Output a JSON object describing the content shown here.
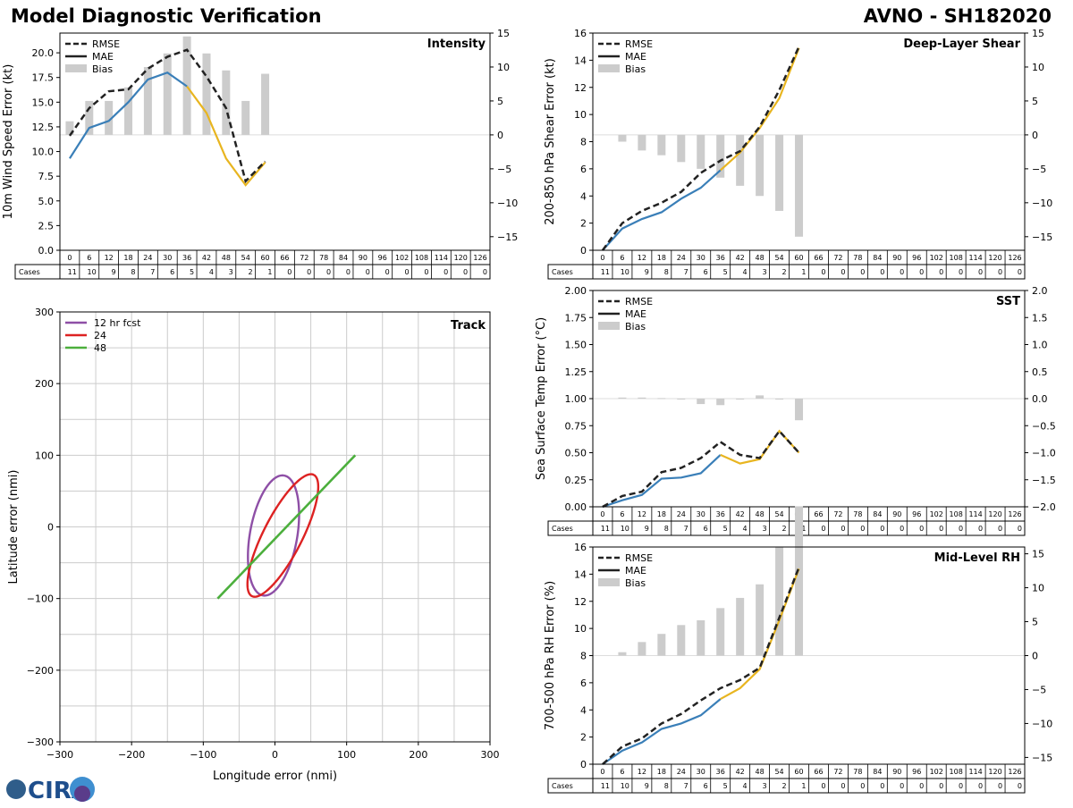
{
  "header": {
    "left_title": "Model Diagnostic Verification",
    "right_title": "AVNO - SH182020",
    "logo_text": "CIRA"
  },
  "legend": {
    "rmse": "RMSE",
    "mae": "MAE",
    "bias": "Bias"
  },
  "table": {
    "cases_label": "Cases",
    "hours": [
      0,
      6,
      12,
      18,
      24,
      30,
      36,
      42,
      48,
      54,
      60,
      66,
      72,
      78,
      84,
      90,
      96,
      102,
      108,
      114,
      120,
      126
    ],
    "cases": [
      11,
      10,
      9,
      8,
      7,
      6,
      5,
      4,
      3,
      2,
      1,
      0,
      0,
      0,
      0,
      0,
      0,
      0,
      0,
      0,
      0,
      0
    ]
  },
  "colors": {
    "rmse": "#222222",
    "mae_early": "#3a7fb8",
    "mae_late": "#e8b520",
    "bias": "#cccccc",
    "track_12": "#8e4fa6",
    "track_24": "#dd2222",
    "track_48": "#4caf3d"
  },
  "chart_data": [
    {
      "type": "line",
      "title": "Intensity",
      "ylabel": "10m Wind Speed Error (kt)",
      "ylim": [
        0,
        22
      ],
      "yticks": [
        0,
        2.5,
        5,
        7.5,
        10,
        12.5,
        15,
        17.5,
        20
      ],
      "ytick_labels": [
        "0.0",
        "2.5",
        "5.0",
        "7.5",
        "10.0",
        "12.5",
        "15.0",
        "17.5",
        "20.0"
      ],
      "y2lim": [
        -17,
        15
      ],
      "y2ticks": [
        -15,
        -10,
        -5,
        0,
        5,
        10,
        15
      ],
      "y2tick_labels": [
        "−15",
        "−10",
        "−5",
        "0",
        "5",
        "10",
        "15"
      ],
      "x": [
        0,
        6,
        12,
        18,
        24,
        30,
        36,
        42,
        48,
        54,
        60
      ],
      "rmse": [
        11.6,
        14.4,
        16.1,
        16.3,
        18.4,
        19.6,
        20.3,
        17.6,
        14.4,
        7.0,
        9.0
      ],
      "mae": [
        9.3,
        12.4,
        13.1,
        15.0,
        17.3,
        18.0,
        16.6,
        13.9,
        9.3,
        6.6,
        8.9
      ],
      "bias": [
        2,
        5,
        5,
        7,
        10,
        12,
        14.5,
        12,
        9.5,
        5,
        9
      ]
    },
    {
      "type": "line",
      "title": "Deep-Layer Shear",
      "ylabel": "200-850 hPa Shear Error (kt)",
      "ylim": [
        0,
        16
      ],
      "yticks": [
        0,
        2,
        4,
        6,
        8,
        10,
        12,
        14,
        16
      ],
      "ytick_labels": [
        "0",
        "2",
        "4",
        "6",
        "8",
        "10",
        "12",
        "14",
        "16"
      ],
      "y2lim": [
        -17,
        15
      ],
      "y2ticks": [
        -15,
        -10,
        -5,
        0,
        5,
        10,
        15
      ],
      "y2tick_labels": [
        "−15",
        "−10",
        "−5",
        "0",
        "5",
        "10",
        "15"
      ],
      "x": [
        0,
        6,
        12,
        18,
        24,
        30,
        36,
        42,
        48,
        54,
        60
      ],
      "rmse": [
        0,
        2.0,
        2.9,
        3.5,
        4.3,
        5.7,
        6.6,
        7.3,
        9.1,
        11.8,
        15.0
      ],
      "mae": [
        0,
        1.6,
        2.3,
        2.8,
        3.8,
        4.6,
        5.9,
        7.2,
        9.0,
        11.2,
        14.9
      ],
      "bias": [
        0,
        -1,
        -2.3,
        -3,
        -4,
        -5,
        -6.3,
        -7.5,
        -9,
        -11.2,
        -15
      ]
    },
    {
      "type": "line",
      "title": "SST",
      "ylabel": "Sea Surface Temp Error (°C)",
      "ylim": [
        0,
        2
      ],
      "yticks": [
        0,
        0.25,
        0.5,
        0.75,
        1,
        1.25,
        1.5,
        1.75,
        2
      ],
      "ytick_labels": [
        "0.00",
        "0.25",
        "0.50",
        "0.75",
        "1.00",
        "1.25",
        "1.50",
        "1.75",
        "2.00"
      ],
      "y2lim": [
        -2,
        2
      ],
      "y2ticks": [
        -2,
        -1.5,
        -1,
        -0.5,
        0,
        0.5,
        1,
        1.5,
        2
      ],
      "y2tick_labels": [
        "−2.0",
        "−1.5",
        "−1.0",
        "−0.5",
        "0.0",
        "0.5",
        "1.0",
        "1.5",
        "2.0"
      ],
      "x": [
        0,
        6,
        12,
        18,
        24,
        30,
        36,
        42,
        48,
        54,
        60
      ],
      "rmse": [
        0,
        0.1,
        0.14,
        0.32,
        0.36,
        0.45,
        0.6,
        0.48,
        0.45,
        0.7,
        0.5
      ],
      "mae": [
        0,
        0.06,
        0.11,
        0.26,
        0.27,
        0.31,
        0.48,
        0.4,
        0.44,
        0.7,
        0.5
      ],
      "bias": [
        0,
        0.02,
        0.02,
        0.01,
        -0.01,
        -0.1,
        -0.12,
        -0.01,
        0.06,
        -0.01,
        -0.4
      ]
    },
    {
      "type": "line",
      "title": "Mid-Level RH",
      "ylabel": "700-500 hPa RH Error (%)",
      "ylim": [
        0,
        16
      ],
      "yticks": [
        0,
        2,
        4,
        6,
        8,
        10,
        12,
        14,
        16
      ],
      "ytick_labels": [
        "0",
        "2",
        "4",
        "6",
        "8",
        "10",
        "12",
        "14",
        "16"
      ],
      "y2lim": [
        -16,
        16
      ],
      "y2ticks": [
        -15,
        -10,
        -5,
        0,
        5,
        10,
        15
      ],
      "y2tick_labels": [
        "−15",
        "−10",
        "−5",
        "0",
        "5",
        "10",
        "15"
      ],
      "x": [
        0,
        6,
        12,
        18,
        24,
        30,
        36,
        42,
        48,
        54,
        60
      ],
      "rmse": [
        0,
        1.3,
        1.9,
        3.0,
        3.7,
        4.7,
        5.6,
        6.2,
        7.1,
        10.8,
        14.5
      ],
      "mae": [
        0,
        1.0,
        1.6,
        2.6,
        3.0,
        3.6,
        4.8,
        5.6,
        7.0,
        10.6,
        14.4
      ],
      "bias": [
        0,
        0.5,
        2,
        3.2,
        4.5,
        5.2,
        7,
        8.5,
        10.5,
        16,
        22
      ]
    },
    {
      "type": "scatter",
      "title": "Track",
      "xlabel": "Longitude error (nmi)",
      "ylabel": "Latitude error (nmi)",
      "xlim": [
        -300,
        300
      ],
      "ylim": [
        -300,
        300
      ],
      "ticks": [
        -300,
        -200,
        -100,
        0,
        100,
        200,
        300
      ],
      "tick_labels": [
        "−300",
        "−200",
        "−100",
        "0",
        "100",
        "200",
        "300"
      ],
      "legend": [
        "12 hr fcst",
        "24",
        "48"
      ],
      "ellipse_12": {
        "center_x": -2,
        "center_y": -12,
        "semi_major": 85,
        "semi_minor": 33,
        "angle_deg": 80
      },
      "ellipse_24": {
        "center_x": 11,
        "center_y": -12,
        "semi_major": 95,
        "semi_minor": 27,
        "angle_deg": 63
      },
      "line_48": {
        "x": [
          -80,
          112
        ],
        "y": [
          -100,
          100
        ]
      }
    }
  ]
}
